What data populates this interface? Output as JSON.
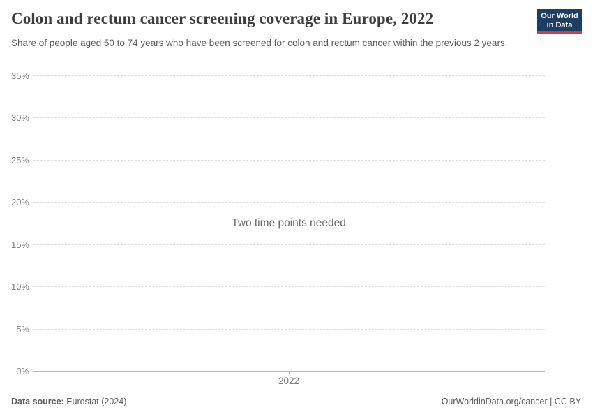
{
  "header": {
    "title": "Colon and rectum cancer screening coverage in Europe, 2022",
    "subtitle": "Share of people aged 50 to 74 years who have been screened for colon and rectum cancer within the previous 2 years.",
    "logo": {
      "line1": "Our World",
      "line2": "in Data"
    }
  },
  "chart_data": {
    "type": "line",
    "title": "Colon and rectum cancer screening coverage in Europe, 2022",
    "series": [],
    "note": "Two time points needed",
    "x": [
      2022
    ],
    "x_tick_labels": [
      "2022"
    ],
    "ylim": [
      0,
      35
    ],
    "y_ticks": [
      35,
      30,
      25,
      20,
      15,
      10,
      5,
      0
    ],
    "y_tick_labels": [
      "35%",
      "30%",
      "25%",
      "20%",
      "15%",
      "10%",
      "5%",
      "0%"
    ],
    "xlabel": "",
    "ylabel": "",
    "grid": "horizontal-dashed",
    "legend_position": "none"
  },
  "footer": {
    "datasource_label": "Data source:",
    "datasource_value": " Eurostat (2024)",
    "link": "OurWorldinData.org/cancer | CC BY"
  },
  "colors": {
    "logo_bg": "#1d3d63",
    "logo_accent": "#d93a3c",
    "gridline": "#dedede",
    "axis_line": "#b8b8b8",
    "title_text": "#3d3d3d",
    "muted_text": "#5b5b5b",
    "tick_text": "#7e7e7e"
  }
}
